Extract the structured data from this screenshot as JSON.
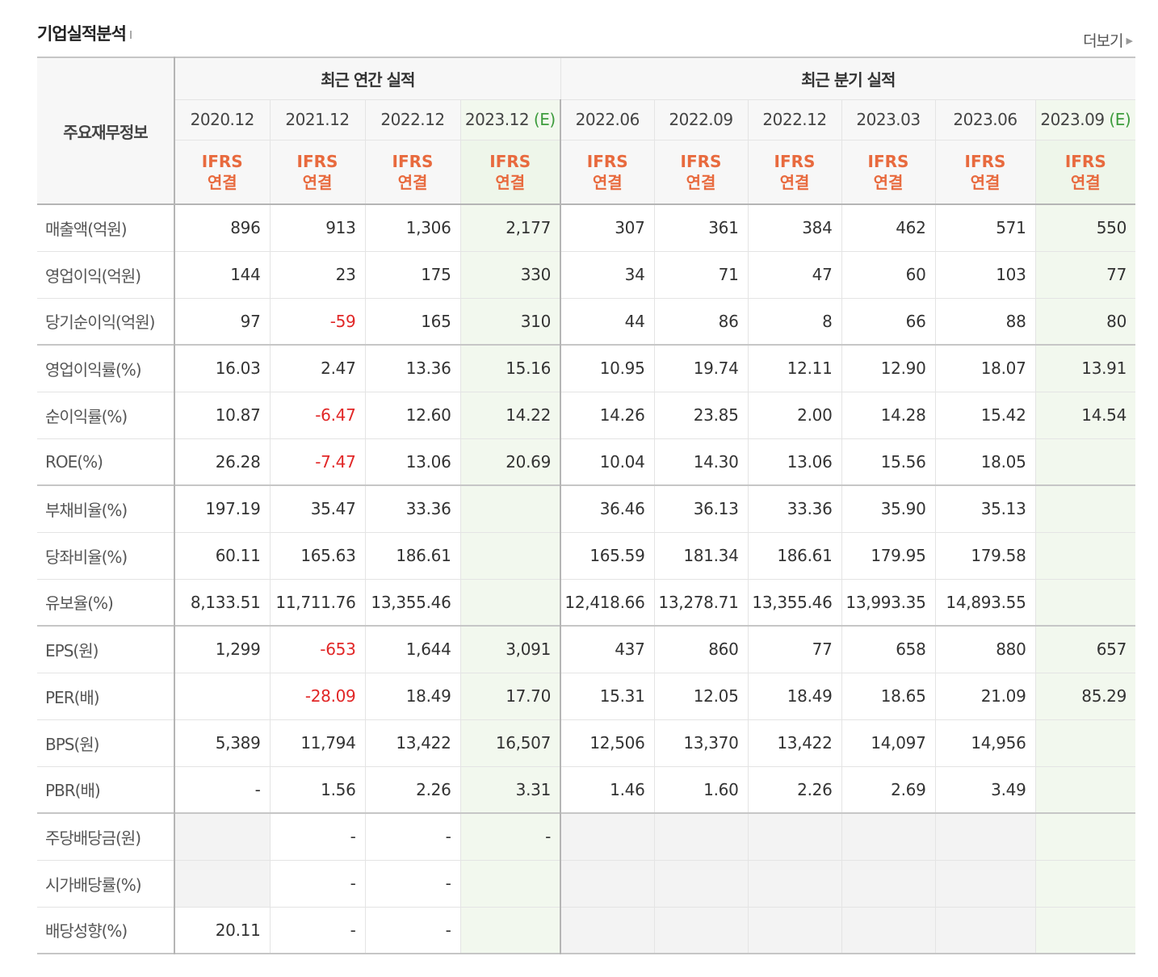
{
  "section": {
    "title": "기업실적분석",
    "more": "더보기"
  },
  "header": {
    "corner": "주요재무정보",
    "annual_group": "최근 연간 실적",
    "quarter_group": "최근 분기 실적",
    "annual_periods": [
      {
        "label": "2020.12",
        "est": ""
      },
      {
        "label": "2021.12",
        "est": ""
      },
      {
        "label": "2022.12",
        "est": ""
      },
      {
        "label": "2023.12",
        "est": "(E)"
      }
    ],
    "quarter_periods": [
      {
        "label": "2022.06",
        "est": ""
      },
      {
        "label": "2022.09",
        "est": ""
      },
      {
        "label": "2022.12",
        "est": ""
      },
      {
        "label": "2023.03",
        "est": ""
      },
      {
        "label": "2023.06",
        "est": ""
      },
      {
        "label": "2023.09",
        "est": "(E)"
      }
    ],
    "basis_line1": "IFRS",
    "basis_line2": "연결"
  },
  "rows": [
    {
      "label": "매출액(억원)",
      "group_start": false,
      "values": [
        "896",
        "913",
        "1,306",
        "2,177",
        "307",
        "361",
        "384",
        "462",
        "571",
        "550"
      ]
    },
    {
      "label": "영업이익(억원)",
      "group_start": false,
      "values": [
        "144",
        "23",
        "175",
        "330",
        "34",
        "71",
        "47",
        "60",
        "103",
        "77"
      ]
    },
    {
      "label": "당기순이익(억원)",
      "group_start": false,
      "values": [
        "97",
        "-59",
        "165",
        "310",
        "44",
        "86",
        "8",
        "66",
        "88",
        "80"
      ]
    },
    {
      "label": "영업이익률(%)",
      "group_start": true,
      "values": [
        "16.03",
        "2.47",
        "13.36",
        "15.16",
        "10.95",
        "19.74",
        "12.11",
        "12.90",
        "18.07",
        "13.91"
      ]
    },
    {
      "label": "순이익률(%)",
      "group_start": false,
      "values": [
        "10.87",
        "-6.47",
        "12.60",
        "14.22",
        "14.26",
        "23.85",
        "2.00",
        "14.28",
        "15.42",
        "14.54"
      ]
    },
    {
      "label": "ROE(%)",
      "group_start": false,
      "values": [
        "26.28",
        "-7.47",
        "13.06",
        "20.69",
        "10.04",
        "14.30",
        "13.06",
        "15.56",
        "18.05",
        ""
      ]
    },
    {
      "label": "부채비율(%)",
      "group_start": true,
      "values": [
        "197.19",
        "35.47",
        "33.36",
        "",
        "36.46",
        "36.13",
        "33.36",
        "35.90",
        "35.13",
        ""
      ]
    },
    {
      "label": "당좌비율(%)",
      "group_start": false,
      "values": [
        "60.11",
        "165.63",
        "186.61",
        "",
        "165.59",
        "181.34",
        "186.61",
        "179.95",
        "179.58",
        ""
      ]
    },
    {
      "label": "유보율(%)",
      "group_start": false,
      "values": [
        "8,133.51",
        "11,711.76",
        "13,355.46",
        "",
        "12,418.66",
        "13,278.71",
        "13,355.46",
        "13,993.35",
        "14,893.55",
        ""
      ]
    },
    {
      "label": "EPS(원)",
      "group_start": true,
      "values": [
        "1,299",
        "-653",
        "1,644",
        "3,091",
        "437",
        "860",
        "77",
        "658",
        "880",
        "657"
      ]
    },
    {
      "label": "PER(배)",
      "group_start": false,
      "values": [
        "",
        "-28.09",
        "18.49",
        "17.70",
        "15.31",
        "12.05",
        "18.49",
        "18.65",
        "21.09",
        "85.29"
      ]
    },
    {
      "label": "BPS(원)",
      "group_start": false,
      "values": [
        "5,389",
        "11,794",
        "13,422",
        "16,507",
        "12,506",
        "13,370",
        "13,422",
        "14,097",
        "14,956",
        ""
      ]
    },
    {
      "label": "PBR(배)",
      "group_start": false,
      "values": [
        "-",
        "1.56",
        "2.26",
        "3.31",
        "1.46",
        "1.60",
        "2.26",
        "2.69",
        "3.49",
        ""
      ]
    },
    {
      "label": "주당배당금(원)",
      "group_start": true,
      "values": [
        "",
        "-",
        "-",
        "-",
        "",
        "",
        "",
        "",
        "",
        ""
      ]
    },
    {
      "label": "시가배당률(%)",
      "group_start": false,
      "values": [
        "",
        "-",
        "-",
        "",
        "",
        "",
        "",
        "",
        "",
        ""
      ]
    },
    {
      "label": "배당성향(%)",
      "group_start": false,
      "values": [
        "20.11",
        "-",
        "-",
        "",
        "",
        "",
        "",
        "",
        "",
        ""
      ]
    }
  ],
  "gray_cells": [
    {
      "row": 13,
      "col": 0
    },
    {
      "row": 13,
      "col": 4
    },
    {
      "row": 13,
      "col": 5
    },
    {
      "row": 13,
      "col": 6
    },
    {
      "row": 13,
      "col": 7
    },
    {
      "row": 13,
      "col": 8
    },
    {
      "row": 14,
      "col": 0
    },
    {
      "row": 14,
      "col": 4
    },
    {
      "row": 14,
      "col": 5
    },
    {
      "row": 14,
      "col": 6
    },
    {
      "row": 14,
      "col": 7
    },
    {
      "row": 14,
      "col": 8
    },
    {
      "row": 15,
      "col": 4
    },
    {
      "row": 15,
      "col": 5
    },
    {
      "row": 15,
      "col": 6
    },
    {
      "row": 15,
      "col": 7
    },
    {
      "row": 15,
      "col": 8
    }
  ],
  "colors": {
    "negative": "#e12727",
    "ifrs": "#e86a3e",
    "estimate": "#3d9c3d",
    "estimate_bg": "#f2f8ee"
  }
}
